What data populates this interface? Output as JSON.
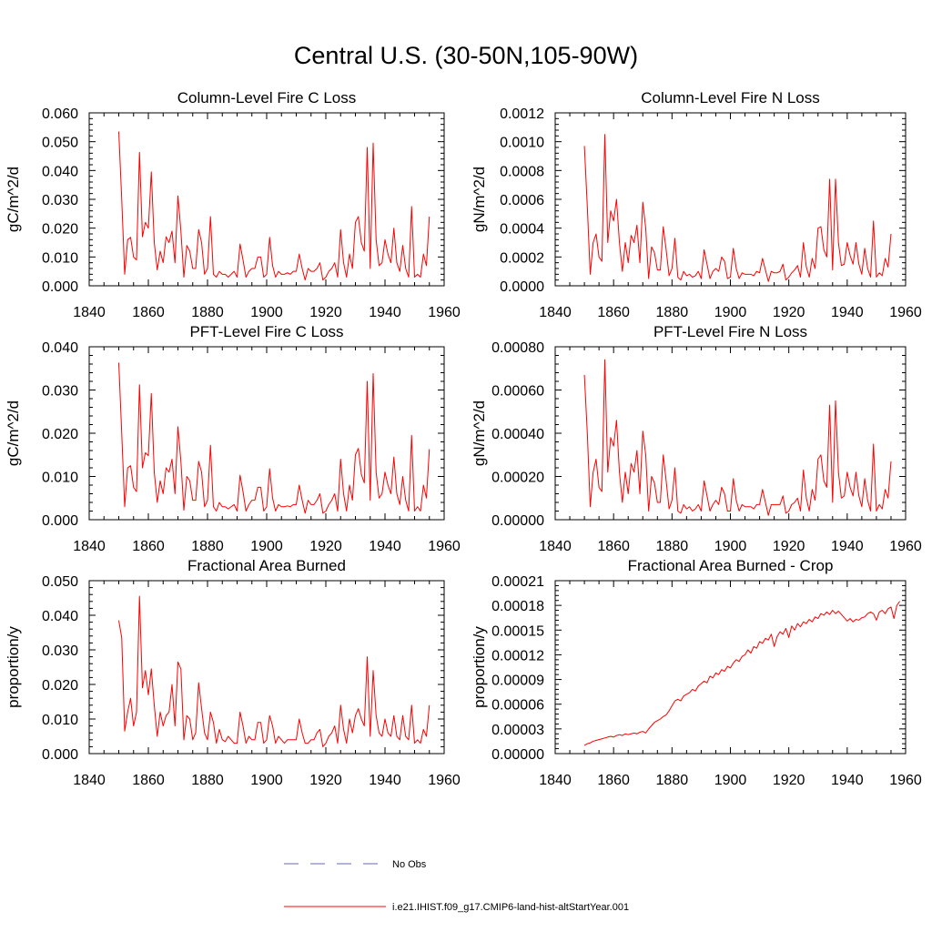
{
  "title": "Central U.S. (30-50N,105-90W)",
  "chart_data": [
    {
      "type": "line",
      "title": "Column-Level Fire C Loss",
      "ylabel": "gC/m^2/d",
      "xlim": [
        1840,
        1960
      ],
      "ylim": [
        0,
        0.06
      ],
      "xticks": [
        "1840",
        "1860",
        "1880",
        "1900",
        "1920",
        "1940",
        "1960"
      ],
      "yticks": [
        "0.000",
        "0.010",
        "0.020",
        "0.030",
        "0.040",
        "0.050",
        "0.060"
      ],
      "series": [
        {
          "name": "i.e21.IHIST.f09_g17.CMIP6-land-hist-altStartYear.001",
          "color": "#ff0000",
          "x_start": 1850,
          "values": [
            0.0535,
            0.03,
            0.004,
            0.016,
            0.0168,
            0.01,
            0.009,
            0.0463,
            0.017,
            0.022,
            0.02,
            0.0395,
            0.015,
            0.0055,
            0.012,
            0.008,
            0.017,
            0.015,
            0.019,
            0.008,
            0.0312,
            0.019,
            0.003,
            0.014,
            0.012,
            0.006,
            0.006,
            0.0195,
            0.015,
            0.004,
            0.006,
            0.024,
            0.004,
            0.003,
            0.005,
            0.004,
            0.004,
            0.003,
            0.004,
            0.005,
            0.003,
            0.0145,
            0.009,
            0.003,
            0.005,
            0.006,
            0.006,
            0.01,
            0.01,
            0.003,
            0.004,
            0.0168,
            0.007,
            0.003,
            0.005,
            0.004,
            0.004,
            0.0045,
            0.004,
            0.005,
            0.005,
            0.011,
            0.006,
            0.002,
            0.006,
            0.005,
            0.005,
            0.006,
            0.008,
            0.002,
            0.003,
            0.005,
            0.006,
            0.008,
            0.003,
            0.0195,
            0.008,
            0.003,
            0.011,
            0.006,
            0.022,
            0.024,
            0.015,
            0.012,
            0.048,
            0.006,
            0.0495,
            0.016,
            0.007,
            0.008,
            0.016,
            0.011,
            0.008,
            0.02,
            0.008,
            0.005,
            0.014,
            0.006,
            0.003,
            0.0275,
            0.003,
            0.004,
            0.003,
            0.011,
            0.007,
            0.024
          ]
        }
      ]
    },
    {
      "type": "line",
      "title": "Column-Level Fire N Loss",
      "ylabel": "gN/m^2/d",
      "xlim": [
        1840,
        1960
      ],
      "ylim": [
        0,
        0.0012
      ],
      "xticks": [
        "1840",
        "1860",
        "1880",
        "1900",
        "1920",
        "1940",
        "1960"
      ],
      "yticks": [
        "0.0000",
        "0.0002",
        "0.0004",
        "0.0006",
        "0.0008",
        "0.0010",
        "0.0012"
      ],
      "series": [
        {
          "name": "i.e21.IHIST.f09_g17.CMIP6-land-hist-altStartYear.001",
          "color": "#ff0000",
          "x_start": 1850,
          "values": [
            0.00097,
            0.00055,
            8e-05,
            0.0003,
            0.00036,
            0.0002,
            0.00017,
            0.00105,
            0.0003,
            0.00052,
            0.00045,
            0.0006,
            0.0003,
            0.0001,
            0.0003,
            0.00016,
            0.00035,
            0.0003,
            0.00042,
            0.00016,
            0.00058,
            0.0004,
            5e-05,
            0.00027,
            0.00023,
            0.00011,
            0.00011,
            0.00041,
            0.00025,
            7e-05,
            0.00012,
            0.00033,
            6e-05,
            4e-05,
            0.0001,
            7e-05,
            8e-05,
            6e-05,
            7e-05,
            0.0001,
            5e-05,
            0.00025,
            0.00015,
            5e-05,
            0.0001,
            0.00012,
            0.0001,
            0.0002,
            0.00017,
            5e-05,
            6e-05,
            0.00026,
            0.00012,
            5e-05,
            9e-05,
            8e-05,
            8e-05,
            8e-05,
            7e-05,
            0.0001,
            9e-05,
            0.00019,
            0.00011,
            3e-05,
            0.0001,
            9e-05,
            9e-05,
            0.0001,
            0.00015,
            4e-05,
            6e-05,
            9e-05,
            0.00011,
            0.00014,
            6e-05,
            0.0003,
            0.00013,
            6e-05,
            0.00019,
            0.00012,
            0.0004,
            0.00041,
            0.00025,
            0.0002,
            0.00074,
            0.00011,
            0.00074,
            0.0003,
            0.00014,
            0.00015,
            0.0003,
            0.00021,
            0.00015,
            0.0003,
            0.00015,
            8e-05,
            0.00026,
            0.00012,
            6e-05,
            0.00045,
            6e-05,
            9e-05,
            7e-05,
            0.00019,
            0.00013,
            0.00036
          ]
        }
      ]
    },
    {
      "type": "line",
      "title": "PFT-Level Fire C Loss",
      "ylabel": "gC/m^2/d",
      "xlim": [
        1840,
        1960
      ],
      "ylim": [
        0,
        0.04
      ],
      "xticks": [
        "1840",
        "1860",
        "1880",
        "1900",
        "1920",
        "1940",
        "1960"
      ],
      "yticks": [
        "0.000",
        "0.010",
        "0.020",
        "0.030",
        "0.040"
      ],
      "series": [
        {
          "name": "i.e21.IHIST.f09_g17.CMIP6-land-hist-altStartYear.001",
          "color": "#ff0000",
          "x_start": 1850,
          "values": [
            0.0363,
            0.02,
            0.003,
            0.012,
            0.0125,
            0.0075,
            0.0065,
            0.0312,
            0.012,
            0.0155,
            0.0148,
            0.0292,
            0.011,
            0.004,
            0.009,
            0.006,
            0.012,
            0.011,
            0.014,
            0.006,
            0.0215,
            0.0135,
            0.0022,
            0.01,
            0.009,
            0.0045,
            0.0045,
            0.0135,
            0.011,
            0.003,
            0.0045,
            0.0172,
            0.003,
            0.002,
            0.004,
            0.003,
            0.003,
            0.0025,
            0.003,
            0.0035,
            0.002,
            0.0103,
            0.0065,
            0.002,
            0.0035,
            0.0045,
            0.0045,
            0.0075,
            0.0075,
            0.002,
            0.003,
            0.0118,
            0.005,
            0.002,
            0.0035,
            0.003,
            0.003,
            0.0032,
            0.003,
            0.0035,
            0.0035,
            0.008,
            0.0045,
            0.0015,
            0.0045,
            0.0035,
            0.0035,
            0.0045,
            0.006,
            0.0015,
            0.002,
            0.0035,
            0.0045,
            0.006,
            0.002,
            0.014,
            0.006,
            0.002,
            0.008,
            0.0045,
            0.015,
            0.0165,
            0.0105,
            0.0085,
            0.032,
            0.0045,
            0.0338,
            0.011,
            0.005,
            0.006,
            0.011,
            0.008,
            0.006,
            0.0145,
            0.006,
            0.0035,
            0.01,
            0.0045,
            0.002,
            0.0195,
            0.002,
            0.003,
            0.002,
            0.008,
            0.005,
            0.0163
          ]
        }
      ]
    },
    {
      "type": "line",
      "title": "PFT-Level Fire N Loss",
      "ylabel": "gN/m^2/d",
      "xlim": [
        1840,
        1960
      ],
      "ylim": [
        0,
        0.0008
      ],
      "xticks": [
        "1840",
        "1860",
        "1880",
        "1900",
        "1920",
        "1940",
        "1960"
      ],
      "yticks": [
        "0.00000",
        "0.00020",
        "0.00040",
        "0.00060",
        "0.00080"
      ],
      "series": [
        {
          "name": "i.e21.IHIST.f09_g17.CMIP6-land-hist-altStartYear.001",
          "color": "#ff0000",
          "x_start": 1850,
          "values": [
            0.00067,
            0.0004,
            6e-05,
            0.00022,
            0.00028,
            0.00015,
            0.00013,
            0.00074,
            0.00022,
            0.00038,
            0.00034,
            0.00046,
            0.00022,
            8e-05,
            0.00022,
            0.00012,
            0.00026,
            0.00022,
            0.00032,
            0.00012,
            0.00041,
            0.0003,
            4e-05,
            0.0002,
            0.00017,
            8e-05,
            8e-05,
            0.0003,
            0.00018,
            5e-05,
            9e-05,
            0.00024,
            4e-05,
            3e-05,
            7e-05,
            5e-05,
            6e-05,
            4e-05,
            5e-05,
            7e-05,
            4e-05,
            0.00018,
            0.00011,
            4e-05,
            7e-05,
            9e-05,
            7e-05,
            0.00015,
            0.00012,
            4e-05,
            4e-05,
            0.00019,
            9e-05,
            4e-05,
            7e-05,
            6e-05,
            6e-05,
            6e-05,
            5e-05,
            7e-05,
            7e-05,
            0.00014,
            8e-05,
            2e-05,
            7e-05,
            7e-05,
            7e-05,
            7e-05,
            0.00011,
            3e-05,
            4e-05,
            7e-05,
            8e-05,
            0.0001,
            4e-05,
            0.00023,
            0.0001,
            4e-05,
            0.00014,
            9e-05,
            0.00028,
            0.0003,
            0.00018,
            0.00015,
            0.00053,
            8e-05,
            0.00055,
            0.00022,
            0.0001,
            0.00011,
            0.00022,
            0.00015,
            0.00011,
            0.00022,
            0.00011,
            6e-05,
            0.00019,
            9e-05,
            4e-05,
            0.00035,
            4e-05,
            7e-05,
            5e-05,
            0.00014,
            0.0001,
            0.00027
          ]
        }
      ]
    },
    {
      "type": "line",
      "title": "Fractional Area Burned",
      "ylabel": "proportion/y",
      "xlim": [
        1840,
        1960
      ],
      "ylim": [
        0,
        0.05
      ],
      "xticks": [
        "1840",
        "1860",
        "1880",
        "1900",
        "1920",
        "1940",
        "1960"
      ],
      "yticks": [
        "0.000",
        "0.010",
        "0.020",
        "0.030",
        "0.040",
        "0.050"
      ],
      "series": [
        {
          "name": "i.e21.IHIST.f09_g17.CMIP6-land-hist-altStartYear.001",
          "color": "#ff0000",
          "x_start": 1850,
          "values": [
            0.0385,
            0.0335,
            0.0065,
            0.012,
            0.016,
            0.008,
            0.012,
            0.0455,
            0.019,
            0.024,
            0.017,
            0.0245,
            0.014,
            0.005,
            0.012,
            0.008,
            0.011,
            0.012,
            0.02,
            0.008,
            0.0265,
            0.0245,
            0.004,
            0.011,
            0.01,
            0.004,
            0.006,
            0.0205,
            0.013,
            0.006,
            0.004,
            0.012,
            0.009,
            0.003,
            0.007,
            0.004,
            0.0035,
            0.005,
            0.004,
            0.003,
            0.003,
            0.012,
            0.008,
            0.003,
            0.005,
            0.004,
            0.004,
            0.009,
            0.009,
            0.003,
            0.004,
            0.011,
            0.008,
            0.003,
            0.005,
            0.004,
            0.003,
            0.004,
            0.004,
            0.004,
            0.004,
            0.01,
            0.006,
            0.003,
            0.003,
            0.004,
            0.004,
            0.006,
            0.007,
            0.002,
            0.003,
            0.005,
            0.006,
            0.008,
            0.003,
            0.014,
            0.007,
            0.003,
            0.01,
            0.006,
            0.011,
            0.013,
            0.01,
            0.008,
            0.028,
            0.005,
            0.024,
            0.011,
            0.006,
            0.005,
            0.01,
            0.006,
            0.005,
            0.011,
            0.005,
            0.004,
            0.011,
            0.005,
            0.004,
            0.014,
            0.003,
            0.004,
            0.003,
            0.007,
            0.005,
            0.014
          ]
        }
      ]
    },
    {
      "type": "line",
      "title": "Fractional Area Burned - Crop",
      "ylabel": "proportion/y",
      "xlim": [
        1840,
        1960
      ],
      "ylim": [
        0,
        0.00021
      ],
      "xticks": [
        "1840",
        "1860",
        "1880",
        "1900",
        "1920",
        "1940",
        "1960"
      ],
      "yticks": [
        "0.00000",
        "0.00003",
        "0.00006",
        "0.00009",
        "0.00012",
        "0.00015",
        "0.00018",
        "0.00021"
      ],
      "series": [
        {
          "name": "i.e21.IHIST.f09_g17.CMIP6-land-hist-altStartYear.001",
          "color": "#ff0000",
          "x_start": 1850,
          "values": [
            1e-05,
            1.2e-05,
            1.3e-05,
            1.5e-05,
            1.6e-05,
            1.7e-05,
            1.8e-05,
            1.9e-05,
            2e-05,
            2.1e-05,
            2e-05,
            2.2e-05,
            2.3e-05,
            2.2e-05,
            2.4e-05,
            2.3e-05,
            2.4e-05,
            2.5e-05,
            2.4e-05,
            2.6e-05,
            2.7e-05,
            2.5e-05,
            3e-05,
            3.4e-05,
            3.8e-05,
            4e-05,
            4.2e-05,
            4.5e-05,
            4.7e-05,
            5.2e-05,
            5.8e-05,
            6.4e-05,
            6.6e-05,
            6.4e-05,
            7e-05,
            7.2e-05,
            7.4e-05,
            7.8e-05,
            7.6e-05,
            8.2e-05,
            8.5e-05,
            8.8e-05,
            8.6e-05,
            9.4e-05,
            9.2e-05,
            9.8e-05,
            9.6e-05,
            0.000102,
            0.0001,
            0.000106,
            0.000104,
            0.00011,
            0.000114,
            0.000112,
            0.000118,
            0.00012,
            0.000126,
            0.000122,
            0.00013,
            0.000128,
            0.000136,
            0.000134,
            0.00014,
            0.000138,
            0.000145,
            0.00013,
            0.000142,
            0.000148,
            0.000145,
            0.000152,
            0.000141,
            0.000155,
            0.00015,
            0.000158,
            0.000154,
            0.00016,
            0.000158,
            0.000163,
            0.00016,
            0.000166,
            0.000164,
            0.00017,
            0.000168,
            0.000172,
            0.000169,
            0.000174,
            0.00017,
            0.000173,
            0.000169,
            0.000165,
            0.000161,
            0.000164,
            0.00016,
            0.000163,
            0.000162,
            0.000165,
            0.000166,
            0.00017,
            0.000172,
            0.00017,
            0.000162,
            0.000172,
            0.000174,
            0.00017,
            0.000176,
            0.000178,
            0.000164,
            0.00018,
            0.000185
          ]
        }
      ]
    }
  ],
  "legend": [
    {
      "label": "No Obs",
      "color": "#6a6ab6",
      "style": "dashed"
    },
    {
      "label": "i.e21.IHIST.f09_g17.CMIP6-land-hist-altStartYear.001",
      "color": "#ff0000",
      "style": "solid"
    }
  ]
}
